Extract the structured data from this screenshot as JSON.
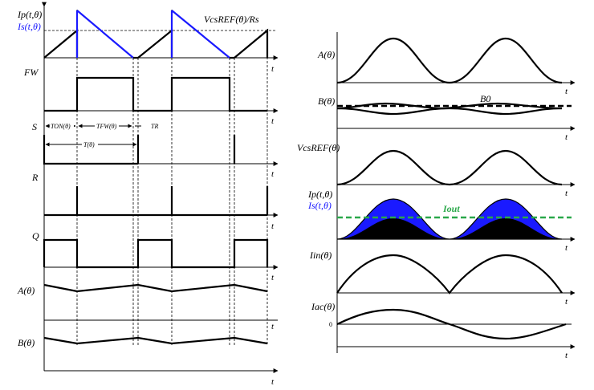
{
  "left": {
    "ip_label": "Ip(t,θ)",
    "is_label": "Is(t,θ)",
    "vcs_ref_label": "VcsREF(θ)/Rs",
    "fw_label": "FW",
    "s_label": "S",
    "r_label": "R",
    "q_label": "Q",
    "a_label": "A(θ)",
    "b_label": "B(θ)",
    "ton_label": "TON(θ)",
    "tfw_label": "TFW(θ)",
    "tr_label": "TR",
    "t_period_label": "T(θ)",
    "time_label": "t"
  },
  "right": {
    "a_label": "A(θ)",
    "b_label": "B(θ)",
    "b0_label": "B0",
    "vcs_label": "VcsREF(θ)",
    "ip_label": "Ip(t,θ)",
    "is_label": "Is(t,θ)",
    "iout_label": "Iout",
    "iin_label": "Iin(θ)",
    "iac_label": "Iac(θ)",
    "zero_label": "0",
    "time_label": "t"
  },
  "colors": {
    "blue": "#1a1aff",
    "green": "#2aa84a",
    "black": "#000000"
  }
}
